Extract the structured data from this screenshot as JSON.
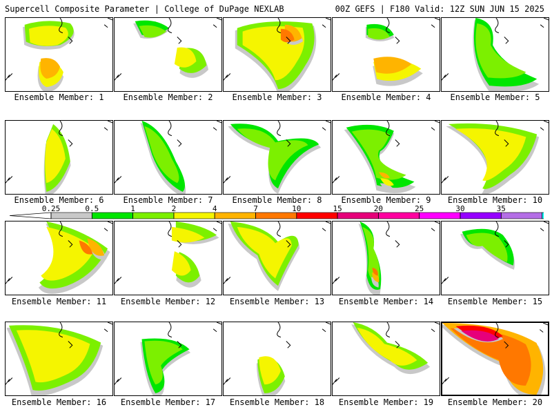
{
  "header": {
    "title": "Supercell Composite Parameter | College of DuPage NEXLAB",
    "run_info": "00Z GEFS | F180 Valid: 12Z SUN JUN 15 2025"
  },
  "colorbar": {
    "labels": [
      "0.25",
      "0.5",
      "1",
      "2",
      "4",
      "7",
      "10",
      "15",
      "20",
      "25",
      "30",
      "35"
    ],
    "colors": [
      "#c8c8c8",
      "#00e600",
      "#7cf000",
      "#f5f500",
      "#ffb400",
      "#ff7800",
      "#ff0000",
      "#e6007a",
      "#ff00a0",
      "#ff00ff",
      "#9600ff",
      "#b46ee6",
      "#00f5f5"
    ]
  },
  "members": [
    {
      "label": "Ensemble Member: 1"
    },
    {
      "label": "Ensemble Member: 2"
    },
    {
      "label": "Ensemble Member: 3"
    },
    {
      "label": "Ensemble Member: 4"
    },
    {
      "label": "Ensemble Member: 5"
    },
    {
      "label": "Ensemble Member: 6"
    },
    {
      "label": "Ensemble Member: 7"
    },
    {
      "label": "Ensemble Member: 8"
    },
    {
      "label": "Ensemble Member: 9"
    },
    {
      "label": "Ensemble Member: 10"
    },
    {
      "label": "Ensemble Member: 11"
    },
    {
      "label": "Ensemble Member: 12"
    },
    {
      "label": "Ensemble Member: 13"
    },
    {
      "label": "Ensemble Member: 14"
    },
    {
      "label": "Ensemble Member: 15"
    },
    {
      "label": "Ensemble Member: 16"
    },
    {
      "label": "Ensemble Member: 17"
    },
    {
      "label": "Ensemble Member: 18"
    },
    {
      "label": "Ensemble Member: 19"
    },
    {
      "label": "Ensemble Member: 20",
      "selected": true
    }
  ]
}
